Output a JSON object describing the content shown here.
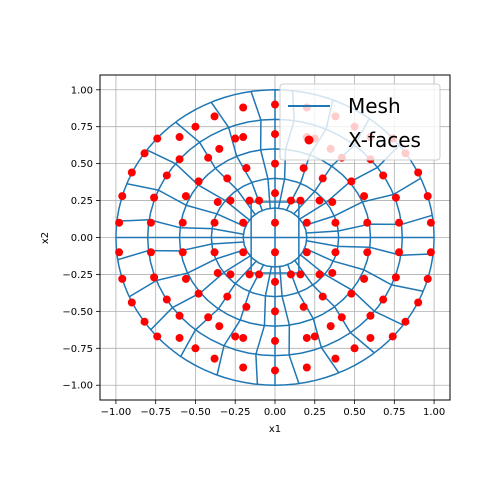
{
  "chart_data": {
    "type": "line",
    "title": "",
    "xlabel": "x1",
    "ylabel": "x2",
    "xlim": [
      -1.1,
      1.1
    ],
    "ylim": [
      -1.1,
      1.1
    ],
    "grid": true,
    "legend_position": "top-right",
    "xticks": [
      -1.0,
      -0.75,
      -0.5,
      -0.25,
      0.0,
      0.25,
      0.5,
      0.75,
      1.0
    ],
    "xtick_labels": [
      "−1.00",
      "−0.75",
      "−0.50",
      "−0.25",
      "0.00",
      "0.25",
      "0.50",
      "0.75",
      "1.00"
    ],
    "yticks": [
      -1.0,
      -0.75,
      -0.5,
      -0.25,
      0.0,
      0.25,
      0.5,
      0.75,
      1.0
    ],
    "ytick_labels": [
      "−1.00",
      "−0.75",
      "−0.50",
      "−0.25",
      "0.00",
      "0.25",
      "0.50",
      "0.75",
      "1.00"
    ],
    "mesh": {
      "radii": [
        0.2,
        0.4,
        0.6,
        0.8,
        1.0
      ],
      "rings_per_level": 5,
      "inner_block_half_width": 0.15,
      "radial_lines_per_quadrant": 5
    },
    "series": [
      {
        "name": "Mesh",
        "kind": "line",
        "color": "#1f77b4"
      },
      {
        "name": "X-faces",
        "kind": "scatter",
        "color": "#ff0000",
        "points": [
          [
            -0.2,
            0.1
          ],
          [
            -0.2,
            -0.1
          ],
          [
            0.2,
            0.1
          ],
          [
            0.2,
            -0.1
          ],
          [
            -0.1,
            0.25
          ],
          [
            -0.1,
            -0.25
          ],
          [
            0.1,
            0.25
          ],
          [
            0.1,
            -0.25
          ],
          [
            0.0,
            0.5
          ],
          [
            0.0,
            0.3
          ],
          [
            0.0,
            0.1
          ],
          [
            0.0,
            -0.1
          ],
          [
            0.0,
            -0.3
          ],
          [
            0.0,
            -0.5
          ],
          [
            0.0,
            0.7
          ],
          [
            0.0,
            0.9
          ],
          [
            0.0,
            -0.7
          ],
          [
            0.0,
            -0.9
          ],
          [
            -0.38,
            0.1
          ],
          [
            -0.36,
            0.24
          ],
          [
            -0.3,
            0.4
          ],
          [
            -0.18,
            0.47
          ],
          [
            -0.58,
            0.1
          ],
          [
            -0.56,
            0.28
          ],
          [
            -0.48,
            0.38
          ],
          [
            -0.42,
            0.54
          ],
          [
            -0.25,
            0.67
          ],
          [
            -0.78,
            0.1
          ],
          [
            -0.76,
            0.27
          ],
          [
            -0.68,
            0.42
          ],
          [
            -0.6,
            0.53
          ],
          [
            -0.35,
            0.6
          ],
          [
            -0.38,
            0.82
          ],
          [
            -0.98,
            0.1
          ],
          [
            -0.96,
            0.28
          ],
          [
            -0.9,
            0.44
          ],
          [
            -0.82,
            0.57
          ],
          [
            -0.74,
            0.67
          ],
          [
            -0.6,
            0.68
          ],
          [
            -0.5,
            0.75
          ],
          [
            -0.2,
            0.88
          ],
          [
            -0.2,
            0.68
          ],
          [
            -0.18,
            0.47
          ],
          [
            -0.38,
            -0.1
          ],
          [
            -0.36,
            -0.24
          ],
          [
            -0.3,
            -0.4
          ],
          [
            -0.18,
            -0.47
          ],
          [
            -0.58,
            -0.1
          ],
          [
            -0.56,
            -0.28
          ],
          [
            -0.48,
            -0.38
          ],
          [
            -0.42,
            -0.54
          ],
          [
            -0.25,
            -0.67
          ],
          [
            -0.78,
            -0.1
          ],
          [
            -0.76,
            -0.27
          ],
          [
            -0.68,
            -0.42
          ],
          [
            -0.6,
            -0.53
          ],
          [
            -0.35,
            -0.6
          ],
          [
            -0.38,
            -0.82
          ],
          [
            -0.98,
            -0.1
          ],
          [
            -0.96,
            -0.28
          ],
          [
            -0.9,
            -0.44
          ],
          [
            -0.82,
            -0.57
          ],
          [
            -0.74,
            -0.67
          ],
          [
            -0.6,
            -0.68
          ],
          [
            -0.5,
            -0.75
          ],
          [
            -0.2,
            -0.88
          ],
          [
            -0.2,
            -0.68
          ],
          [
            -0.28,
            -0.25
          ],
          [
            0.38,
            0.1
          ],
          [
            0.36,
            0.24
          ],
          [
            0.3,
            0.4
          ],
          [
            0.18,
            0.47
          ],
          [
            0.58,
            0.1
          ],
          [
            0.56,
            0.28
          ],
          [
            0.48,
            0.38
          ],
          [
            0.42,
            0.54
          ],
          [
            0.25,
            0.67
          ],
          [
            0.78,
            0.1
          ],
          [
            0.76,
            0.27
          ],
          [
            0.68,
            0.42
          ],
          [
            0.6,
            0.53
          ],
          [
            0.35,
            0.6
          ],
          [
            0.38,
            0.82
          ],
          [
            0.98,
            0.1
          ],
          [
            0.96,
            0.28
          ],
          [
            0.9,
            0.44
          ],
          [
            0.82,
            0.57
          ],
          [
            0.74,
            0.67
          ],
          [
            0.6,
            0.68
          ],
          [
            0.5,
            0.75
          ],
          [
            0.2,
            0.88
          ],
          [
            0.2,
            0.68
          ],
          [
            0.38,
            -0.1
          ],
          [
            0.36,
            -0.24
          ],
          [
            0.3,
            -0.4
          ],
          [
            0.18,
            -0.47
          ],
          [
            0.58,
            -0.1
          ],
          [
            0.56,
            -0.28
          ],
          [
            0.48,
            -0.38
          ],
          [
            0.42,
            -0.54
          ],
          [
            0.25,
            -0.67
          ],
          [
            0.78,
            -0.1
          ],
          [
            0.76,
            -0.27
          ],
          [
            0.68,
            -0.42
          ],
          [
            0.6,
            -0.53
          ],
          [
            0.35,
            -0.6
          ],
          [
            0.38,
            -0.82
          ],
          [
            0.98,
            -0.1
          ],
          [
            0.96,
            -0.28
          ],
          [
            0.9,
            -0.44
          ],
          [
            0.82,
            -0.57
          ],
          [
            0.74,
            -0.67
          ],
          [
            0.6,
            -0.68
          ],
          [
            0.5,
            -0.75
          ],
          [
            0.2,
            -0.88
          ],
          [
            0.2,
            -0.68
          ],
          [
            -0.28,
            0.25
          ],
          [
            0.28,
            0.25
          ],
          [
            0.28,
            -0.25
          ],
          [
            0.16,
            0.25
          ],
          [
            -0.16,
            -0.25
          ],
          [
            0.16,
            -0.25
          ],
          [
            -0.16,
            0.25
          ]
        ]
      }
    ],
    "legend": [
      {
        "label": "Mesh",
        "symbol": "line",
        "color": "#1f77b4"
      },
      {
        "label": "X-faces",
        "symbol": "dot",
        "color": "#ff0000"
      }
    ]
  }
}
